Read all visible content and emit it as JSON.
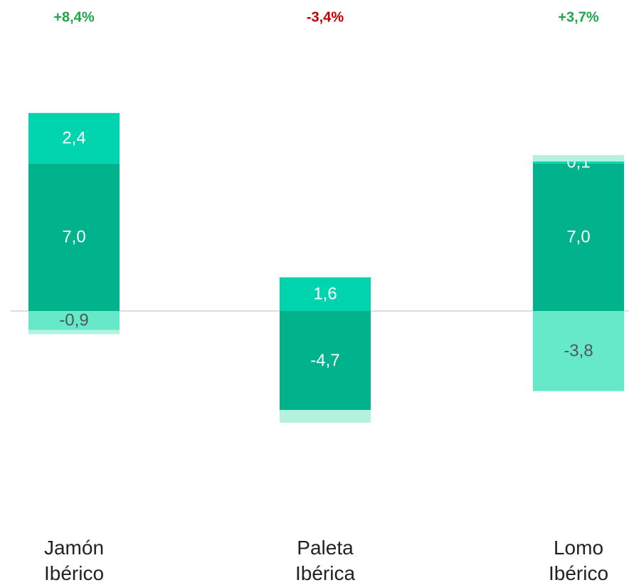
{
  "chart_data": {
    "type": "stacked_bar",
    "categories": [
      "Jamón Ibérico",
      "Paleta Ibérica",
      "Lomo Ibérico"
    ],
    "series": [
      {
        "color": "#00b38c",
        "values": [
          7.0,
          -4.7,
          7.0
        ],
        "value_labels": [
          "7,0",
          "-4,7",
          "7,0"
        ]
      },
      {
        "color": "#00d4ae",
        "values": [
          2.4,
          1.6,
          0.1
        ],
        "value_labels": [
          "2,4",
          "1,6",
          "0,1"
        ]
      },
      {
        "color": "#66e9c8",
        "values": [
          -0.9,
          null,
          -3.8
        ],
        "value_labels": [
          "-0,9",
          null,
          "-3,8"
        ]
      },
      {
        "color": "#b2f2de",
        "values": [
          -0.2,
          -0.6,
          0.3
        ]
      }
    ],
    "changes": [
      8.4,
      -3.4,
      3.7
    ],
    "change_labels": [
      "+8,4%",
      "-3,4%",
      "+3,7%"
    ],
    "positive_color": "#1fa64a",
    "negative_color": "#c00000"
  }
}
